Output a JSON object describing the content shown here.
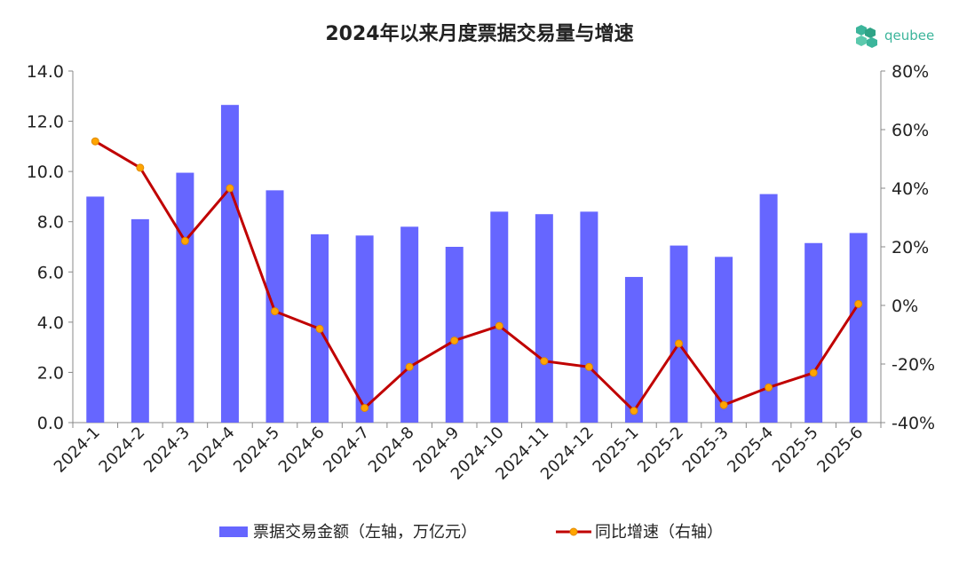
{
  "logo": {
    "text": "qeubee",
    "icon": "cube-cluster-icon",
    "color": "#3cb59b"
  },
  "chart_data": {
    "type": "bar",
    "title": "2024年以来月度票据交易量与增速",
    "categories": [
      "2024-1",
      "2024-2",
      "2024-3",
      "2024-4",
      "2024-5",
      "2024-6",
      "2024-7",
      "2024-8",
      "2024-9",
      "2024-10",
      "2024-11",
      "2024-12",
      "2025-1",
      "2025-2",
      "2025-3",
      "2025-4",
      "2025-5",
      "2025-6"
    ],
    "series": [
      {
        "name": "票据交易金额（左轴，万亿元）",
        "type": "bar",
        "axis": "left",
        "color": "#6666ff",
        "values": [
          9.0,
          8.1,
          9.95,
          12.65,
          9.25,
          7.5,
          7.45,
          7.8,
          7.0,
          8.4,
          8.3,
          8.4,
          5.8,
          7.05,
          6.6,
          9.1,
          7.15,
          7.55
        ]
      },
      {
        "name": "同比增速（右轴）",
        "type": "line",
        "axis": "right",
        "color": "#c00000",
        "marker_color": "#ffa500",
        "values": [
          56,
          47,
          22,
          40,
          -2,
          -8,
          -35,
          -21,
          -12,
          -7,
          -19,
          -21,
          -36,
          -13,
          -34,
          -28,
          -23,
          0.5
        ]
      }
    ],
    "y_left": {
      "min": 0,
      "max": 14,
      "step": 2,
      "ticks": [
        "0.0",
        "2.0",
        "4.0",
        "6.0",
        "8.0",
        "10.0",
        "12.0",
        "14.0"
      ]
    },
    "y_right": {
      "min": -40,
      "max": 80,
      "step": 20,
      "ticks": [
        "-40%",
        "-20%",
        "0%",
        "20%",
        "40%",
        "60%",
        "80%"
      ]
    },
    "grid": false,
    "legend_position": "bottom"
  }
}
